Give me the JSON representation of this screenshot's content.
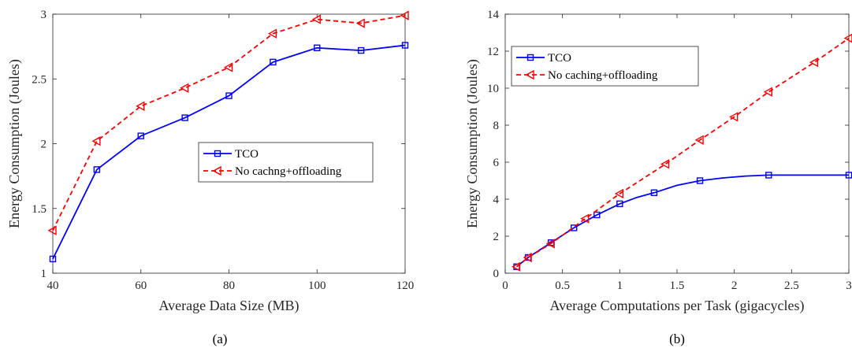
{
  "chart_data": [
    {
      "type": "line",
      "caption": "(a)",
      "xlabel": "Average Data Size (MB)",
      "ylabel": "Energy Consumption (Joules)",
      "xlim": [
        40,
        120
      ],
      "ylim": [
        1,
        3
      ],
      "xticks": [
        "40",
        "60",
        "80",
        "100",
        "120"
      ],
      "yticks": [
        "1",
        "1.5",
        "2",
        "2.5",
        "3"
      ],
      "grid": false,
      "legend_position": "center-right",
      "series": [
        {
          "name": "TCO",
          "color": "#0000ff",
          "marker": "square",
          "line": "solid",
          "x": [
            40,
            50,
            60,
            70,
            80,
            90,
            100,
            110,
            120
          ],
          "y": [
            1.11,
            1.8,
            2.06,
            2.2,
            2.37,
            2.63,
            2.74,
            2.72,
            2.76
          ]
        },
        {
          "name": "No cachng+offloading",
          "color": "#ff0000",
          "marker": "triangle-left",
          "line": "dashed",
          "x": [
            40,
            50,
            60,
            70,
            80,
            90,
            100,
            110,
            120
          ],
          "y": [
            1.33,
            2.02,
            2.29,
            2.43,
            2.59,
            2.85,
            2.96,
            2.93,
            2.99
          ]
        }
      ]
    },
    {
      "type": "line",
      "caption": "(b)",
      "xlabel": "Average Computations per Task (gigacycles)",
      "ylabel": "Energy Consumption (Joules)",
      "xlim": [
        0,
        3
      ],
      "ylim": [
        0,
        14
      ],
      "xticks": [
        "0",
        "0.5",
        "1",
        "1.5",
        "2",
        "2.5",
        "3"
      ],
      "yticks": [
        "0",
        "2",
        "4",
        "6",
        "8",
        "10",
        "12",
        "14"
      ],
      "grid": false,
      "legend_position": "top-left",
      "series": [
        {
          "name": "TCO",
          "color": "#0000ff",
          "marker": "square",
          "line": "solid",
          "x": [
            0.1,
            0.2,
            0.4,
            0.6,
            0.8,
            1.0,
            1.3,
            1.7,
            2.3,
            3.0
          ],
          "y": [
            0.35,
            0.85,
            1.65,
            2.45,
            3.15,
            3.75,
            4.35,
            5.0,
            5.3,
            5.3
          ],
          "curve_x": [
            0.1,
            0.2,
            0.4,
            0.6,
            0.8,
            1.0,
            1.15,
            1.3,
            1.5,
            1.7,
            1.9,
            2.1,
            2.3,
            2.6,
            3.0
          ],
          "curve_y": [
            0.35,
            0.85,
            1.65,
            2.45,
            3.15,
            3.75,
            4.1,
            4.35,
            4.75,
            5.0,
            5.15,
            5.25,
            5.3,
            5.3,
            5.3
          ]
        },
        {
          "name": "No caching+offloading",
          "color": "#ff0000",
          "marker": "triangle-left",
          "line": "dashed",
          "x": [
            0.1,
            0.2,
            0.4,
            0.7,
            1.0,
            1.4,
            1.7,
            2.0,
            2.3,
            2.7,
            3.0
          ],
          "y": [
            0.35,
            0.85,
            1.6,
            2.95,
            4.3,
            5.9,
            7.2,
            8.45,
            9.8,
            11.4,
            12.7
          ]
        }
      ]
    }
  ]
}
